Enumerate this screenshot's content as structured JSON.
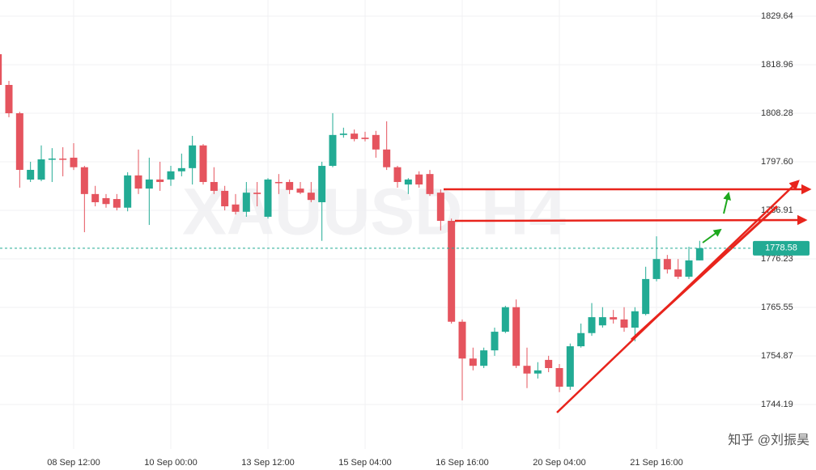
{
  "chart_data": {
    "type": "candlestick",
    "watermark": "XAUUSD H4",
    "credit": "知乎 @刘振昊",
    "categories": [
      null,
      null,
      null,
      null,
      null,
      null,
      null,
      "08 Sep 12:00",
      null,
      null,
      null,
      null,
      null,
      null,
      null,
      null,
      "10 Sep 00:00",
      null,
      null,
      null,
      null,
      null,
      null,
      null,
      null,
      "13 Sep 12:00",
      null,
      null,
      null,
      null,
      null,
      null,
      null,
      null,
      "15 Sep 04:00",
      null,
      null,
      null,
      null,
      null,
      null,
      null,
      null,
      "16 Sep 16:00",
      null,
      null,
      null,
      null,
      null,
      null,
      null,
      null,
      "20 Sep 04:00",
      null,
      null,
      null,
      null,
      null,
      null,
      null,
      null,
      "21 Sep 16:00",
      null,
      null,
      null,
      null
    ],
    "open": [
      1821.27,
      1814.51,
      1808.28,
      1793.68,
      1793.68,
      1798.13,
      1798.3,
      1798.5,
      1796.4,
      1790.5,
      1789.6,
      1789.4,
      1787.5,
      1794.6,
      1791.7,
      1793.7,
      1793.7,
      1795.5,
      1796.2,
      1801.2,
      1793.15,
      1791.2,
      1788.2,
      1786.6,
      1790.8,
      1785.5,
      1793.15,
      1793.15,
      1791.7,
      1790.8,
      1788.7,
      1796.7,
      1803.5,
      1803.8,
      1802.9,
      1803.5,
      1800.3,
      1796.4,
      1792.6,
      1794.8,
      1794.9,
      1790.8,
      1784.6,
      1762.4,
      1754.3,
      1752.7,
      1756.1,
      1760.2,
      1765.6,
      1752.7,
      1751.0,
      1754.0,
      1752.2,
      1748.1,
      1757.0,
      1759.9,
      1761.6,
      1763.4,
      1762.9,
      1761.1,
      1764.1,
      1771.8,
      1776.2,
      1773.9,
      1772.3,
      1775.9
    ],
    "high": [
      1822.16,
      1815.4,
      1808.6,
      1797.6,
      1801.2,
      1800.6,
      1800.8,
      1801.7,
      1796.7,
      1792.3,
      1790.5,
      1790.5,
      1795.3,
      1800.3,
      1798.5,
      1797.6,
      1796.7,
      1799.4,
      1803.3,
      1801.5,
      1796.4,
      1792.3,
      1790.5,
      1793.15,
      1793.15,
      1794.0,
      1794.9,
      1793.7,
      1793.15,
      1793.15,
      1797.6,
      1808.3,
      1805.1,
      1804.7,
      1804.2,
      1804.4,
      1806.5,
      1796.7,
      1794.0,
      1795.5,
      1795.8,
      1791.5,
      1785.1,
      1762.9,
      1756.7,
      1756.7,
      1761.1,
      1765.9,
      1767.3,
      1756.7,
      1753.5,
      1754.9,
      1753.1,
      1757.6,
      1762.0,
      1766.5,
      1765.6,
      1765.0,
      1765.6,
      1765.6,
      1774.5,
      1781.2,
      1777.1,
      1776.2,
      1778.9,
      1780.2
    ],
    "low": [
      1814.0,
      1807.4,
      1791.9,
      1793.15,
      1793.33,
      1793.15,
      1794.4,
      1795.8,
      1782.1,
      1787.8,
      1787.5,
      1786.9,
      1786.7,
      1790.5,
      1783.7,
      1791.2,
      1792.3,
      1794.4,
      1792.6,
      1792.6,
      1790.5,
      1786.9,
      1786.0,
      1785.5,
      1787.8,
      1785.1,
      1790.5,
      1790.5,
      1790.5,
      1788.7,
      1780.2,
      1796.4,
      1802.9,
      1802.1,
      1802.1,
      1798.5,
      1795.8,
      1791.9,
      1790.5,
      1791.9,
      1790.1,
      1782.5,
      1762.0,
      1745.1,
      1751.7,
      1752.2,
      1754.9,
      1759.9,
      1752.2,
      1747.8,
      1749.9,
      1751.3,
      1746.9,
      1747.4,
      1756.7,
      1759.3,
      1761.1,
      1762.0,
      1760.2,
      1758.1,
      1763.8,
      1771.3,
      1773.0,
      1771.8,
      1771.8,
      1775.9
    ],
    "close": [
      1814.51,
      1808.28,
      1795.82,
      1795.82,
      1798.13,
      1798.31,
      1798.1,
      1796.4,
      1790.5,
      1788.7,
      1788.3,
      1787.5,
      1794.6,
      1791.7,
      1793.7,
      1793.15,
      1795.5,
      1796.2,
      1801.2,
      1793.15,
      1791.2,
      1787.8,
      1786.6,
      1790.8,
      1790.5,
      1793.7,
      1793.0,
      1791.4,
      1790.8,
      1789.2,
      1796.7,
      1803.5,
      1803.8,
      1802.6,
      1802.6,
      1800.3,
      1796.4,
      1793.15,
      1793.7,
      1792.6,
      1790.5,
      1784.6,
      1762.4,
      1754.3,
      1752.7,
      1756.1,
      1760.2,
      1765.6,
      1752.7,
      1751.0,
      1751.7,
      1752.2,
      1748.1,
      1757.0,
      1759.9,
      1763.4,
      1763.4,
      1762.9,
      1761.1,
      1764.7,
      1771.8,
      1776.2,
      1773.9,
      1772.3,
      1775.9,
      1778.6
    ],
    "up_color": "#22ab94",
    "down_color": "#e5545e",
    "ylim": [
      1734.4,
      1833.2
    ],
    "yticks": [
      1744.19,
      1754.87,
      1765.55,
      1776.23,
      1786.91,
      {
        "value": 1797.6,
        "label": "1797.60"
      },
      1808.28,
      1818.96,
      1829.64
    ],
    "last_price": 1778.58,
    "last_price_color": "#22ab94",
    "grid": true
  }
}
